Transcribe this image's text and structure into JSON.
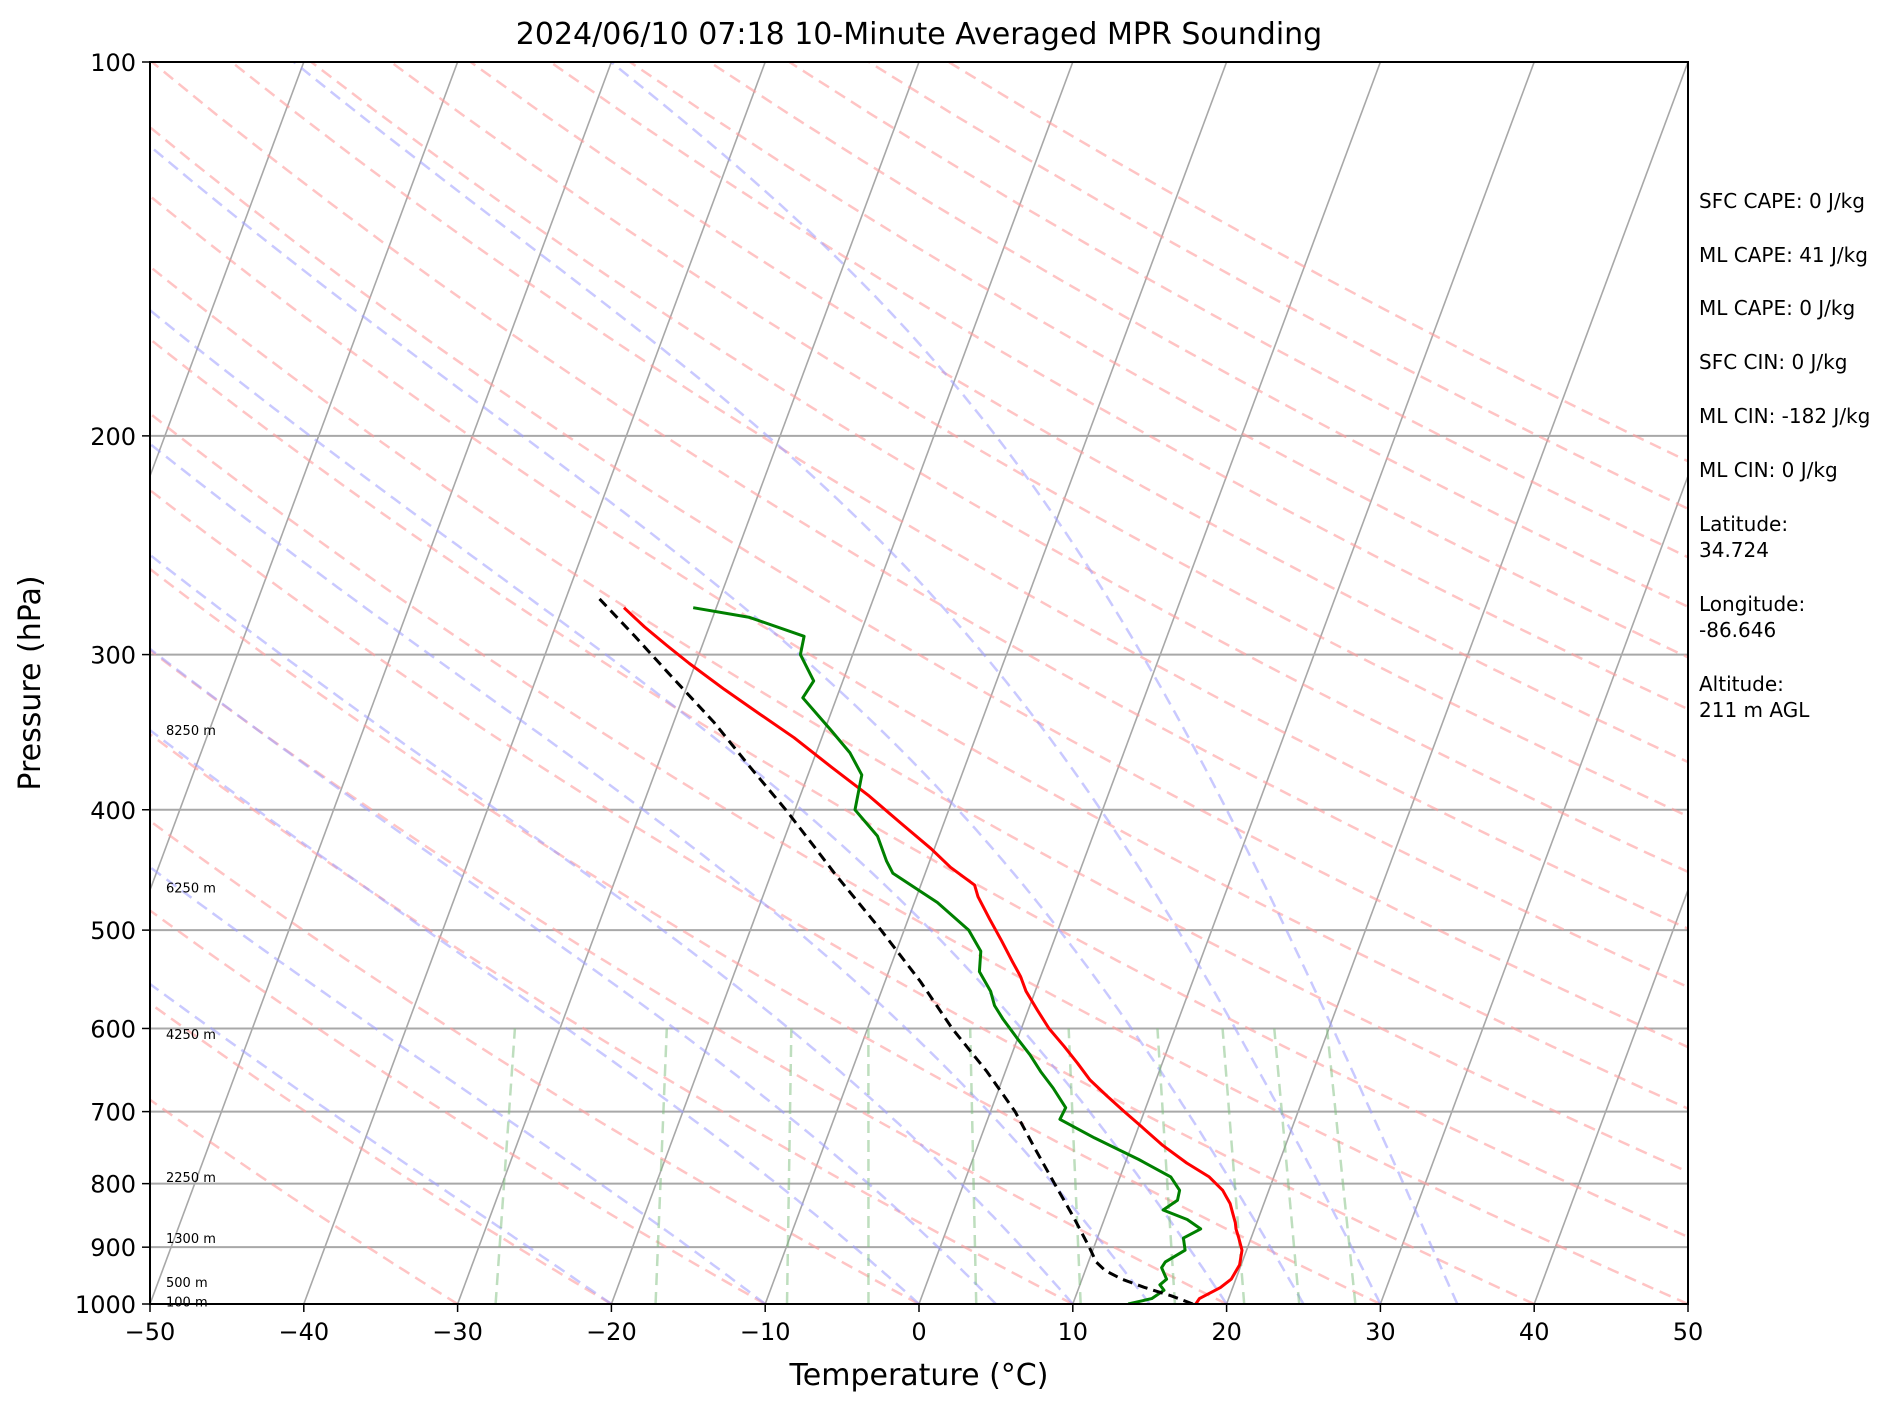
{
  "chart_data": {
    "type": "line",
    "title": "2024/06/10 07:18 10-Minute Averaged MPR Sounding",
    "xlabel": "Temperature (°C)",
    "ylabel": "Pressure (hPa)",
    "xlim": [
      -50,
      50
    ],
    "ylim": [
      1000,
      100
    ],
    "y_scale": "log",
    "x_ticks": [
      "−50",
      "−40",
      "−30",
      "−20",
      "−10",
      "0",
      "10",
      "20",
      "30",
      "40",
      "50"
    ],
    "x_tick_values": [
      -50,
      -40,
      -30,
      -20,
      -10,
      0,
      10,
      20,
      30,
      40,
      50
    ],
    "y_ticks": [
      "100",
      "200",
      "300",
      "400",
      "500",
      "600",
      "700",
      "800",
      "900",
      "1000"
    ],
    "y_tick_values": [
      100,
      200,
      300,
      400,
      500,
      600,
      700,
      800,
      900,
      1000
    ],
    "grid": true,
    "skew": 30,
    "height_labels": [
      {
        "text": "8250 m",
        "p": 345
      },
      {
        "text": "6250 m",
        "p": 462
      },
      {
        "text": "4250 m",
        "p": 606
      },
      {
        "text": "2250 m",
        "p": 790
      },
      {
        "text": "1300 m",
        "p": 885
      },
      {
        "text": "500 m",
        "p": 960
      },
      {
        "text": "100 m",
        "p": 995
      }
    ],
    "series": [
      {
        "color": "#ff0000",
        "style": "solid",
        "p": [
          1000,
          990,
          970,
          955,
          930,
          905,
          885,
          870,
          860,
          845,
          830,
          820,
          810,
          790,
          770,
          745,
          720,
          700,
          680,
          660,
          640,
          620,
          600,
          580,
          560,
          545,
          530,
          510,
          490,
          470,
          460,
          445,
          430,
          410,
          390,
          370,
          350,
          335,
          320,
          305,
          295,
          285,
          275
        ],
        "t": [
          18.0,
          18.1,
          19.2,
          19.7,
          19.9,
          19.7,
          19.2,
          18.8,
          18.6,
          18.2,
          17.8,
          17.4,
          17.0,
          15.8,
          14.0,
          12.0,
          10.2,
          8.7,
          7.2,
          5.7,
          4.5,
          3.2,
          1.8,
          0.6,
          -0.6,
          -1.3,
          -2.2,
          -3.4,
          -4.7,
          -6.0,
          -6.5,
          -8.5,
          -10.2,
          -12.8,
          -15.5,
          -18.6,
          -21.8,
          -24.6,
          -27.5,
          -30.4,
          -32.3,
          -34.2,
          -36.0
        ]
      },
      {
        "color": "#008000",
        "style": "solid",
        "p": [
          1000,
          990,
          975,
          965,
          955,
          935,
          925,
          905,
          885,
          870,
          855,
          840,
          825,
          810,
          790,
          765,
          735,
          710,
          695,
          670,
          650,
          630,
          610,
          590,
          575,
          560,
          540,
          520,
          500,
          475,
          450,
          440,
          420,
          400,
          375,
          360,
          345,
          325,
          315,
          300,
          290,
          280,
          275
        ],
        "t": [
          13.6,
          15.0,
          15.6,
          15.2,
          15.5,
          14.9,
          15.0,
          16.0,
          15.6,
          16.5,
          15.4,
          13.6,
          14.3,
          14.2,
          13.3,
          10.8,
          7.4,
          4.7,
          4.8,
          3.5,
          2.3,
          1.2,
          -0.1,
          -1.4,
          -2.3,
          -2.9,
          -4.1,
          -4.5,
          -5.8,
          -8.5,
          -12.1,
          -12.8,
          -14.0,
          -16.1,
          -16.5,
          -17.8,
          -19.6,
          -22.2,
          -21.9,
          -23.4,
          -23.6,
          -27.6,
          -31.5
        ]
      },
      {
        "color": "#000000",
        "style": "dashed",
        "p": [
          1000,
          985,
          970,
          955,
          940,
          925,
          900,
          850,
          800,
          750,
          700,
          650,
          600,
          550,
          500,
          450,
          430,
          400,
          370,
          340,
          310,
          290,
          270
        ],
        "t": [
          17.8,
          16.2,
          14.3,
          12.6,
          11.3,
          10.5,
          9.7,
          7.9,
          5.9,
          3.8,
          1.6,
          -1.2,
          -4.5,
          -7.7,
          -11.5,
          -15.9,
          -17.7,
          -20.6,
          -23.9,
          -27.4,
          -31.6,
          -34.6,
          -37.9
        ]
      }
    ],
    "side_annotations": [
      "SFC CAPE: 0 J/kg",
      "ML CAPE: 41 J/kg",
      "ML CAPE: 0 J/kg",
      "SFC CIN: 0 J/kg",
      "ML CIN: -182 J/kg",
      "ML CIN: 0 J/kg",
      "Latitude:",
      "34.724",
      "Longitude:",
      "-86.646",
      "Altitude:",
      "211 m AGL"
    ],
    "background_colors": {
      "isotherm": "#a8a8a8",
      "isobar": "#a8a8a8",
      "dry_adiabat": "#ff9c9c",
      "moist_adiabat": "#9c9cff",
      "mixing_ratio": "#7fbf7f"
    }
  }
}
